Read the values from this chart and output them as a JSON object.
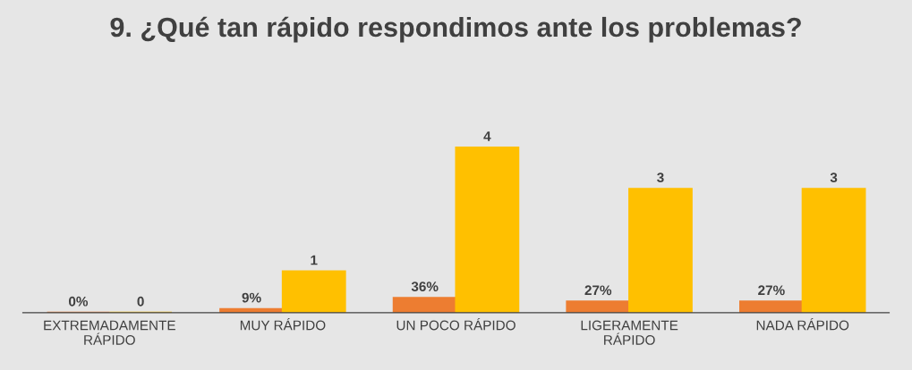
{
  "chart_data": {
    "type": "bar",
    "title": "9. ¿Qué tan rápido respondimos ante los problemas?",
    "categories": [
      "EXTREMADAMENTE\nRÁPIDO",
      "MUY RÁPIDO",
      "UN POCO RÁPIDO",
      "LIGERAMENTE\nRÁPIDO",
      "NADA RÁPIDO"
    ],
    "series": [
      {
        "color": "#ed7d31",
        "values": [
          0,
          0.09,
          0.36,
          0.27,
          0.27
        ],
        "value_labels": [
          "0%",
          "9%",
          "36%",
          "27%",
          "27%"
        ]
      },
      {
        "color": "#ffc000",
        "values": [
          0,
          1,
          4,
          3,
          3
        ],
        "value_labels": [
          "0",
          "1",
          "4",
          "3",
          "3"
        ]
      }
    ],
    "legend": false,
    "grid": false
  }
}
